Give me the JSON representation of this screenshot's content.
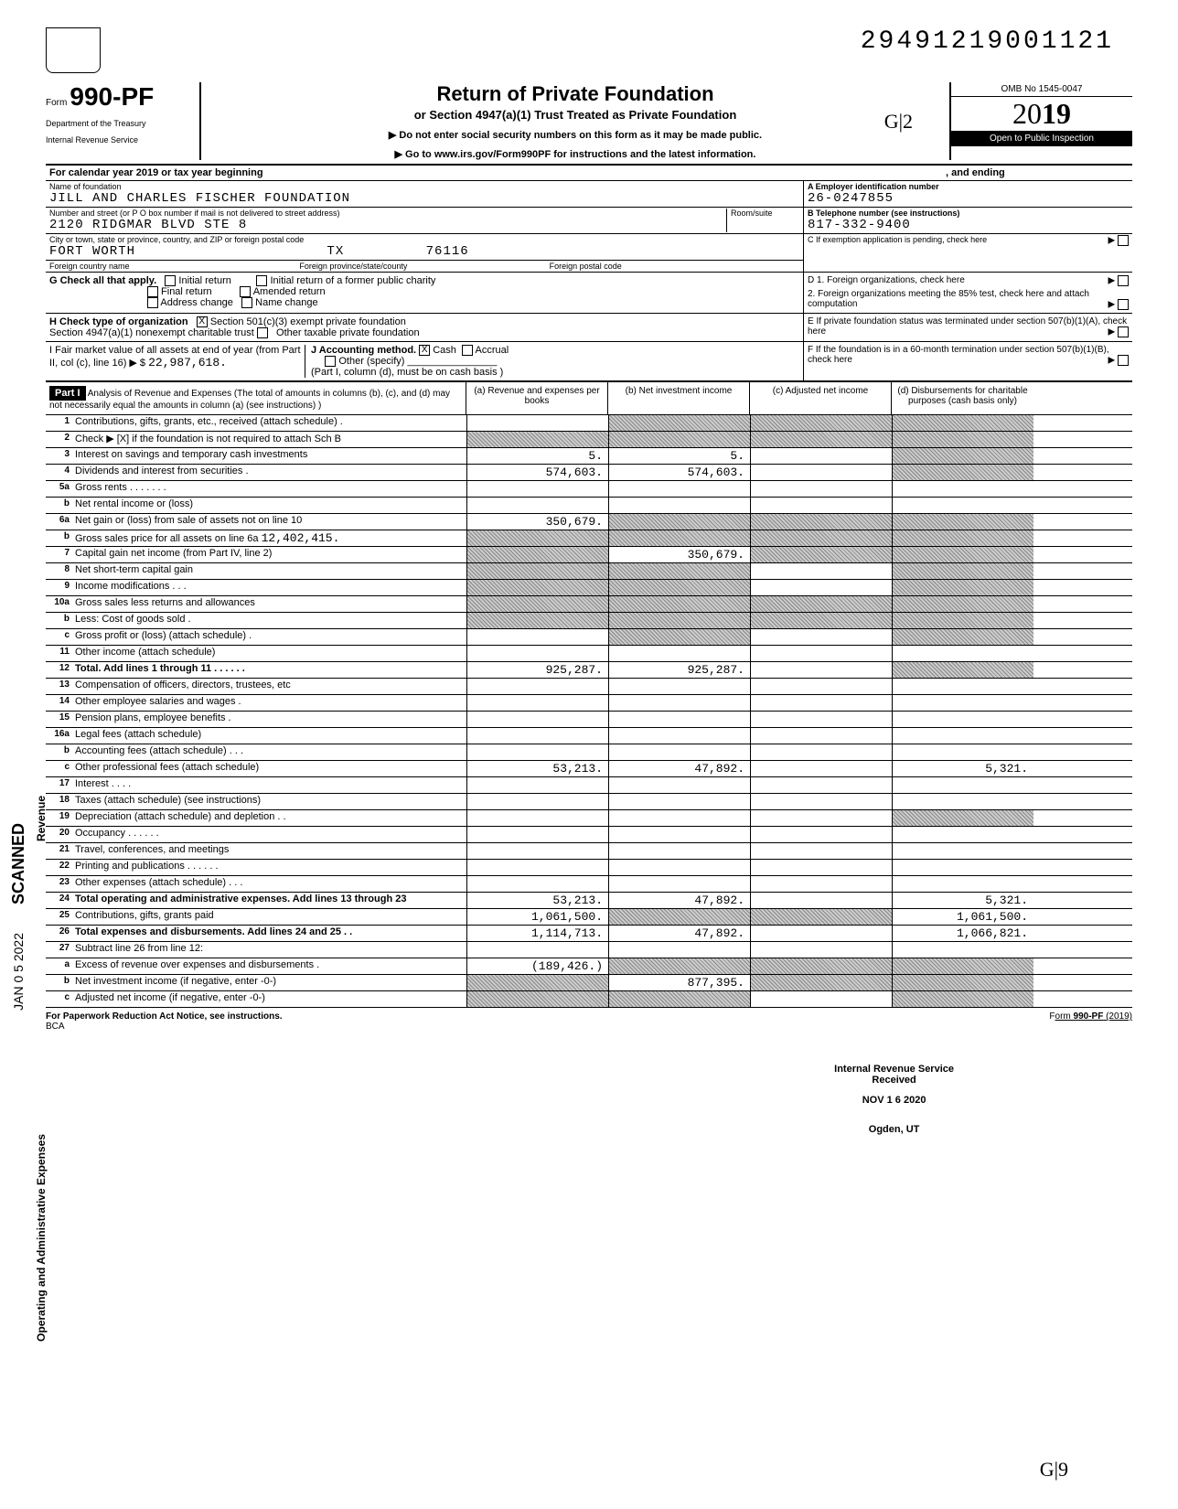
{
  "dln": "29491219001121",
  "form": {
    "prefix": "Form",
    "number": "990-PF",
    "dept1": "Department of the Treasury",
    "dept2": "Internal Revenue Service",
    "title": "Return of Private Foundation",
    "subtitle": "or Section 4947(a)(1) Trust Treated as Private Foundation",
    "instruct1": "▶   Do not enter social security numbers on this form as it may be made public.",
    "instruct2": "▶   Go to www.irs.gov/Form990PF for instructions and the latest information.",
    "omb": "OMB No 1545-0047",
    "year": "2019",
    "yearprefix": "20",
    "inspection": "Open to Public Inspection"
  },
  "calendar": {
    "text": "For calendar year 2019 or tax year beginning",
    "ending": ", and ending"
  },
  "foundation": {
    "name_label": "Name of foundation",
    "name": "JILL AND CHARLES FISCHER FOUNDATION",
    "addr_label": "Number and street (or P O  box number if mail is not delivered to street address)",
    "room_label": "Room/suite",
    "addr": "2120 RIDGMAR BLVD STE 8",
    "city_label": "City or town, state or province, country, and ZIP or foreign postal code",
    "city": "FORT WORTH",
    "state": "TX",
    "zip": "76116",
    "foreign_country_label": "Foreign country name",
    "foreign_province_label": "Foreign province/state/county",
    "foreign_postal_label": "Foreign postal code"
  },
  "ein": {
    "label": "A  Employer identification number",
    "value": "26-0247855"
  },
  "phone": {
    "label": "B  Telephone number (see instructions)",
    "value": "817-332-9400"
  },
  "c_label": "C   If exemption application is pending, check here",
  "g": {
    "label": "G    Check all that apply.",
    "initial": "Initial return",
    "initial_former": "Initial return of a former public charity",
    "final": "Final return",
    "amended": "Amended return",
    "address": "Address change",
    "name_change": "Name change"
  },
  "h": {
    "label": "H    Check type of organization",
    "sec501": "Section 501(c)(3) exempt private foundation",
    "sec4947": "Section 4947(a)(1) nonexempt charitable trust",
    "other_tax": "Other taxable private foundation"
  },
  "d": {
    "d1": "D  1.  Foreign organizations, check here",
    "d2": "2.  Foreign organizations meeting the 85% test, check here and attach computation"
  },
  "e_label": "E   If private foundation status was terminated under section 507(b)(1)(A), check here",
  "i": {
    "label": "I     Fair market value of all assets at end of year (from Part II, col (c), line 16) ▶ $",
    "value": "22,987,618."
  },
  "j": {
    "label": "J   Accounting method.",
    "cash": "Cash",
    "accrual": "Accrual",
    "other": "Other (specify)",
    "note": "(Part I, column (d), must be on cash basis )"
  },
  "f_label": "F   If the foundation is in a 60-month termination under section 507(b)(1)(B), check here",
  "part1": {
    "label": "Part I",
    "title": "Analysis of Revenue and Expenses (The total of amounts in columns (b), (c), and (d) may not necessarily equal the amounts in column (a) (see instructions) )",
    "col_a": "(a) Revenue and expenses per books",
    "col_b": "(b) Net investment income",
    "col_c": "(c) Adjusted net income",
    "col_d": "(d) Disbursements for charitable purposes (cash basis only)"
  },
  "revenue_label": "Revenue",
  "expenses_label": "Operating and Administrative Expenses",
  "scanned_label": "SCANNED",
  "jan_label": "JAN 0 5 2022",
  "lines": {
    "l1": {
      "n": "1",
      "d": "Contributions, gifts, grants, etc., received (attach schedule) ."
    },
    "l2": {
      "n": "2",
      "d": "Check ▶ [X] if the foundation is not required to attach Sch B"
    },
    "l3": {
      "n": "3",
      "d": "Interest on savings and temporary cash investments",
      "a": "5.",
      "b": "5."
    },
    "l4": {
      "n": "4",
      "d": "Dividends and interest from securities     .",
      "a": "574,603.",
      "b": "574,603."
    },
    "l5a": {
      "n": "5a",
      "d": "Gross rents   .  .  .              .  .  .  ."
    },
    "l5b": {
      "n": "b",
      "d": "Net rental income or (loss)"
    },
    "l6a": {
      "n": "6a",
      "d": "Net gain or (loss) from sale of assets not on line 10",
      "a": "350,679."
    },
    "l6b": {
      "n": "b",
      "d": "Gross sales price for all assets on line 6a",
      "amt": "12,402,415."
    },
    "l7": {
      "n": "7",
      "d": "Capital gain net income (from Part IV, line 2)",
      "b": "350,679."
    },
    "l8": {
      "n": "8",
      "d": "Net short-term capital gain"
    },
    "l9": {
      "n": "9",
      "d": "Income modifications          .   .   ."
    },
    "l10a": {
      "n": "10a",
      "d": "Gross sales less returns and allowances"
    },
    "l10b": {
      "n": "b",
      "d": "Less: Cost of goods sold  ."
    },
    "l10c": {
      "n": "c",
      "d": "Gross profit or (loss) (attach schedule)          ."
    },
    "l11": {
      "n": "11",
      "d": "Other income (attach schedule)"
    },
    "l12": {
      "n": "12",
      "d": "Total.  Add lines 1 through 11     .   .   .   .   .   .",
      "a": "925,287.",
      "b": "925,287."
    },
    "l13": {
      "n": "13",
      "d": "Compensation of officers, directors, trustees, etc"
    },
    "l14": {
      "n": "14",
      "d": "Other employee salaries and wages  ."
    },
    "l15": {
      "n": "15",
      "d": "Pension plans, employee benefits  ."
    },
    "l16a": {
      "n": "16a",
      "d": "Legal fees (attach schedule)"
    },
    "l16b": {
      "n": "b",
      "d": "Accounting fees (attach schedule)   .   .   ."
    },
    "l16c": {
      "n": "c",
      "d": "Other professional fees (attach schedule)",
      "a": "53,213.",
      "b": "47,892.",
      "dd": "5,321."
    },
    "l17": {
      "n": "17",
      "d": "Interest       .     .   .   ."
    },
    "l18": {
      "n": "18",
      "d": "Taxes (attach schedule) (see instructions)"
    },
    "l19": {
      "n": "19",
      "d": "Depreciation (attach schedule) and depletion   .   ."
    },
    "l20": {
      "n": "20",
      "d": "Occupancy       .        .   .   .   .     ."
    },
    "l21": {
      "n": "21",
      "d": "Travel, conferences, and meetings"
    },
    "l22": {
      "n": "22",
      "d": "Printing and publications     .   .   .   .   .   ."
    },
    "l23": {
      "n": "23",
      "d": "Other expenses (attach schedule)  .         .   ."
    },
    "l24": {
      "n": "24",
      "d": "Total operating and administrative expenses. Add lines 13 through 23",
      "a": "53,213.",
      "b": "47,892.",
      "dd": "5,321."
    },
    "l25": {
      "n": "25",
      "d": "Contributions, gifts, grants paid",
      "a": "1,061,500.",
      "dd": "1,061,500."
    },
    "l26": {
      "n": "26",
      "d": "Total expenses and disbursements. Add lines 24 and 25 .  .",
      "a": "1,114,713.",
      "b": "47,892.",
      "dd": "1,066,821."
    },
    "l27": {
      "n": "27",
      "d": "Subtract line 26 from line 12:"
    },
    "l27a": {
      "n": "a",
      "d": "Excess of revenue over expenses and disbursements     .",
      "a": "(189,426.)"
    },
    "l27b": {
      "n": "b",
      "d": "Net investment income (if negative, enter -0-)",
      "b": "877,395."
    },
    "l27c": {
      "n": "c",
      "d": "Adjusted net income (if negative, enter -0-)"
    }
  },
  "footer": {
    "left": "For Paperwork Reduction Act Notice, see instructions.",
    "bca": "BCA",
    "right": "Form 990-PF (2019)"
  },
  "stamp": {
    "l1": "Internal Revenue Service",
    "l2": "Received",
    "l3": "NOV 1 6 2020",
    "l4": "Ogden, UT"
  },
  "handwritten": {
    "g12": "G|2",
    "g19": "G|9"
  }
}
